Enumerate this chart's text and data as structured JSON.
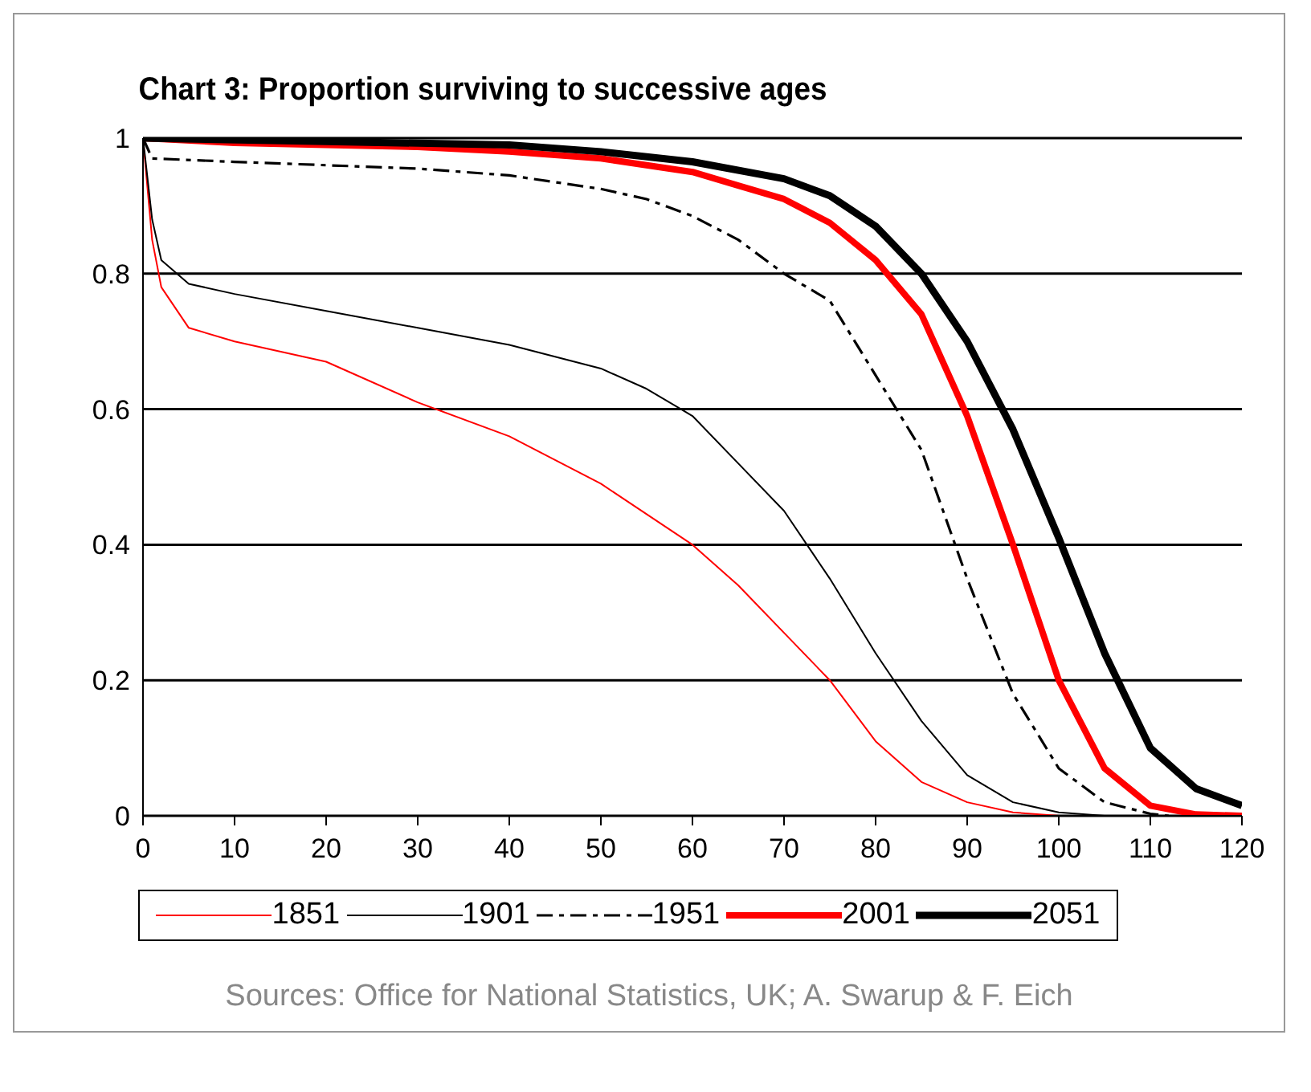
{
  "chart_data": {
    "type": "line",
    "title": "Chart 3: Proportion surviving to successive ages",
    "xlim": [
      0,
      120
    ],
    "xticks": [
      0,
      10,
      20,
      30,
      40,
      50,
      60,
      70,
      80,
      90,
      100,
      110,
      120
    ],
    "ylim": [
      0,
      1
    ],
    "yticks": [
      0,
      0.2,
      0.4,
      0.6,
      0.8,
      1
    ],
    "grid": "y",
    "legend": "bottom",
    "marker": "none",
    "annotations": [
      "Sources: Office for National Statistics, UK; A. Swarup & F. Eich"
    ],
    "series": [
      {
        "name": "1851",
        "color": "#ff0000",
        "line_style": "solid",
        "x": [
          0,
          1,
          2,
          5,
          10,
          20,
          30,
          40,
          50,
          60,
          65,
          70,
          75,
          80,
          85,
          90,
          95,
          100
        ],
        "values": [
          1,
          0.85,
          0.78,
          0.72,
          0.7,
          0.67,
          0.61,
          0.56,
          0.49,
          0.4,
          0.34,
          0.27,
          0.2,
          0.11,
          0.05,
          0.02,
          0.005,
          0
        ]
      },
      {
        "name": "1901",
        "color": "#000000",
        "line_style": "solid",
        "x": [
          0,
          1,
          2,
          5,
          10,
          20,
          30,
          40,
          50,
          55,
          60,
          65,
          70,
          75,
          80,
          85,
          90,
          95,
          100,
          105
        ],
        "values": [
          1,
          0.88,
          0.82,
          0.785,
          0.77,
          0.745,
          0.72,
          0.695,
          0.66,
          0.63,
          0.59,
          0.52,
          0.45,
          0.35,
          0.24,
          0.14,
          0.06,
          0.02,
          0.005,
          0
        ]
      },
      {
        "name": "1951",
        "color": "#000000",
        "line_style": "dashed",
        "x": [
          0,
          1,
          10,
          20,
          30,
          40,
          50,
          55,
          60,
          65,
          70,
          75,
          80,
          85,
          90,
          95,
          100,
          105,
          110,
          112
        ],
        "values": [
          1,
          0.97,
          0.965,
          0.96,
          0.955,
          0.945,
          0.925,
          0.91,
          0.885,
          0.85,
          0.8,
          0.76,
          0.65,
          0.54,
          0.35,
          0.18,
          0.07,
          0.02,
          0.003,
          0
        ]
      },
      {
        "name": "2001",
        "color": "#ff0000",
        "line_style": "solid",
        "x": [
          0,
          10,
          20,
          30,
          40,
          50,
          60,
          65,
          70,
          75,
          80,
          85,
          90,
          95,
          100,
          105,
          110,
          115,
          120
        ],
        "values": [
          1,
          0.993,
          0.99,
          0.987,
          0.98,
          0.97,
          0.95,
          0.93,
          0.91,
          0.875,
          0.82,
          0.74,
          0.59,
          0.4,
          0.2,
          0.07,
          0.015,
          0.002,
          0
        ]
      },
      {
        "name": "2051",
        "color": "#000000",
        "line_style": "solid",
        "x": [
          0,
          20,
          40,
          50,
          60,
          70,
          75,
          80,
          85,
          90,
          95,
          100,
          105,
          110,
          115,
          120
        ],
        "values": [
          1,
          0.995,
          0.99,
          0.98,
          0.965,
          0.94,
          0.915,
          0.87,
          0.8,
          0.7,
          0.57,
          0.41,
          0.24,
          0.1,
          0.04,
          0.015
        ]
      }
    ]
  }
}
